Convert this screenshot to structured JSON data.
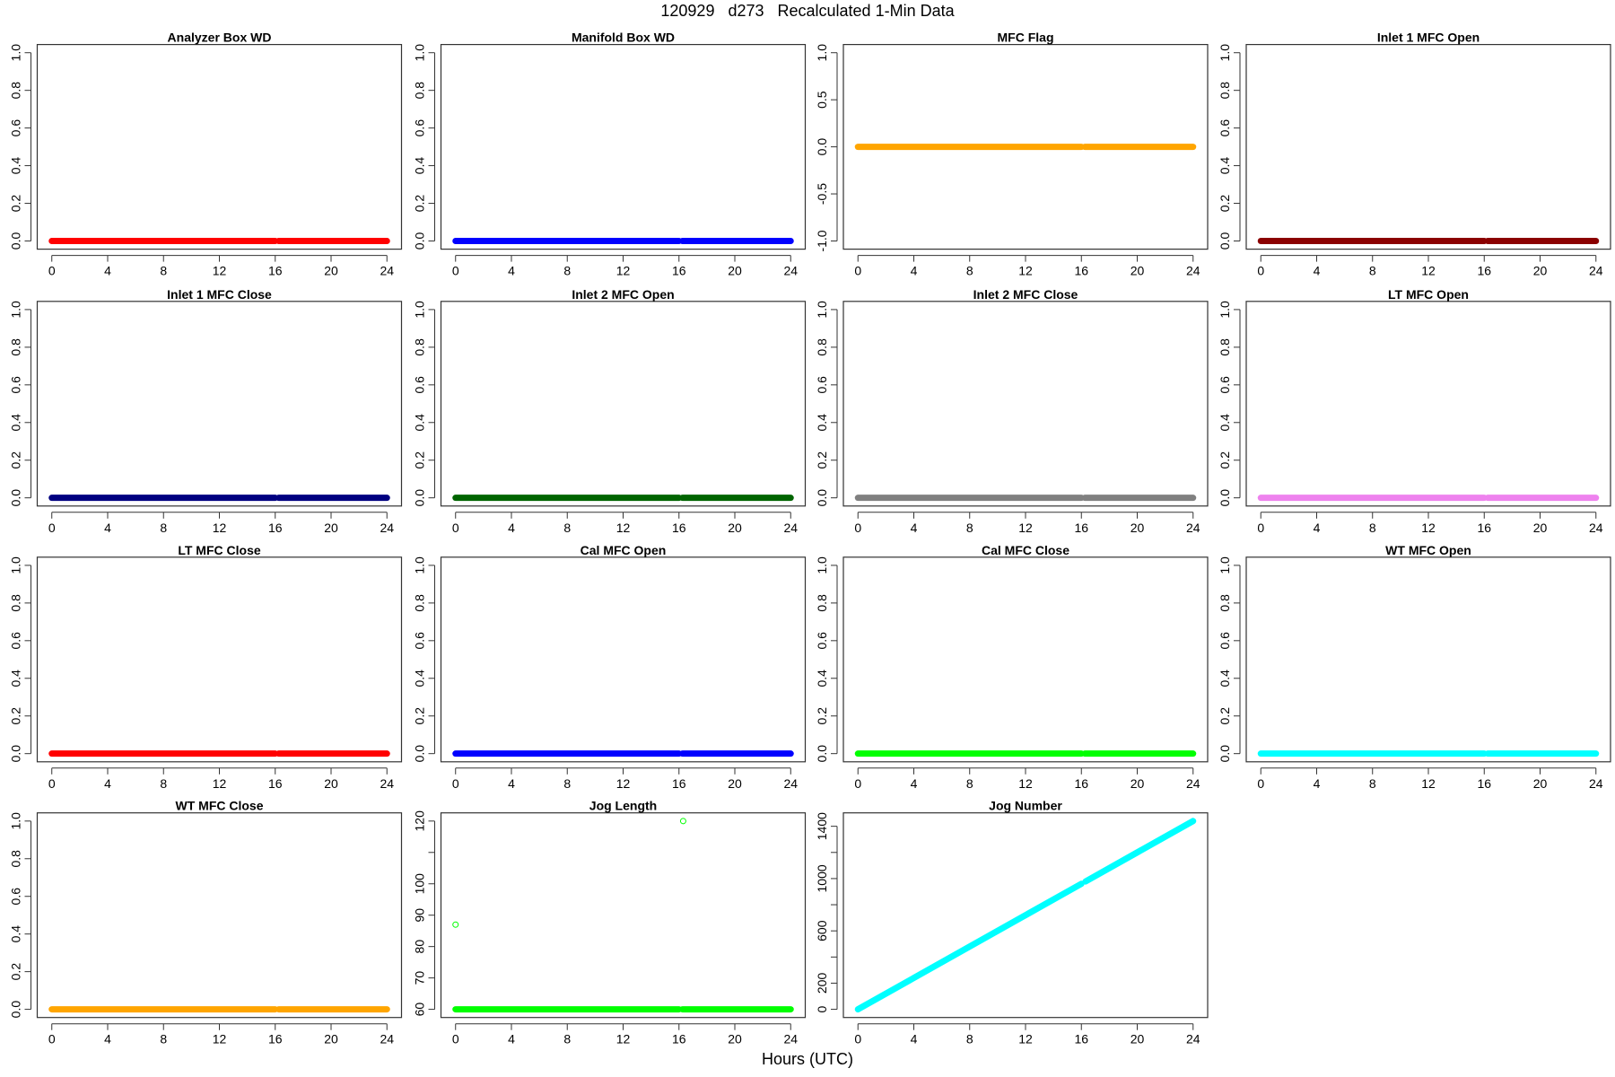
{
  "title": "120929   d273   Recalculated 1-Min Data",
  "xlabel": "Hours (UTC)",
  "chart_data": [
    {
      "type": "scatter",
      "title": "Analyzer Box WD",
      "color": "#FF0000",
      "xlim": [
        0,
        24
      ],
      "ylim": [
        0,
        1
      ],
      "xticks": [
        0,
        4,
        8,
        12,
        16,
        20,
        24
      ],
      "yticks": [
        {
          "v": 0,
          "l": "0.0"
        },
        {
          "v": 0.2,
          "l": "0.2"
        },
        {
          "v": 0.4,
          "l": "0.4"
        },
        {
          "v": 0.6,
          "l": "0.6"
        },
        {
          "v": 0.8,
          "l": "0.8"
        },
        {
          "v": 1,
          "l": "1.0"
        }
      ],
      "segments": [
        {
          "x": [
            0,
            16
          ],
          "y": [
            0,
            0
          ]
        },
        {
          "x": [
            16.25,
            24
          ],
          "y": [
            0,
            0
          ]
        }
      ],
      "points": []
    },
    {
      "type": "scatter",
      "title": "Manifold Box WD",
      "color": "#0000FF",
      "xlim": [
        0,
        24
      ],
      "ylim": [
        0,
        1
      ],
      "xticks": [
        0,
        4,
        8,
        12,
        16,
        20,
        24
      ],
      "yticks": [
        {
          "v": 0,
          "l": "0.0"
        },
        {
          "v": 0.2,
          "l": "0.2"
        },
        {
          "v": 0.4,
          "l": "0.4"
        },
        {
          "v": 0.6,
          "l": "0.6"
        },
        {
          "v": 0.8,
          "l": "0.8"
        },
        {
          "v": 1,
          "l": "1.0"
        }
      ],
      "segments": [
        {
          "x": [
            0,
            16
          ],
          "y": [
            0,
            0
          ]
        },
        {
          "x": [
            16.25,
            24
          ],
          "y": [
            0,
            0
          ]
        }
      ],
      "points": []
    },
    {
      "type": "scatter",
      "title": "MFC Flag",
      "color": "#FFA500",
      "xlim": [
        0,
        24
      ],
      "ylim": [
        -1,
        1
      ],
      "xticks": [
        0,
        4,
        8,
        12,
        16,
        20,
        24
      ],
      "yticks": [
        {
          "v": -1,
          "l": "-1.0"
        },
        {
          "v": -0.5,
          "l": "-0.5"
        },
        {
          "v": 0,
          "l": "0.0"
        },
        {
          "v": 0.5,
          "l": "0.5"
        },
        {
          "v": 1,
          "l": "1.0"
        }
      ],
      "segments": [
        {
          "x": [
            0,
            16
          ],
          "y": [
            0,
            0
          ]
        },
        {
          "x": [
            16.25,
            24
          ],
          "y": [
            0,
            0
          ]
        }
      ],
      "points": []
    },
    {
      "type": "scatter",
      "title": "Inlet 1 MFC Open",
      "color": "#8B0000",
      "xlim": [
        0,
        24
      ],
      "ylim": [
        0,
        1
      ],
      "xticks": [
        0,
        4,
        8,
        12,
        16,
        20,
        24
      ],
      "yticks": [
        {
          "v": 0,
          "l": "0.0"
        },
        {
          "v": 0.2,
          "l": "0.2"
        },
        {
          "v": 0.4,
          "l": "0.4"
        },
        {
          "v": 0.6,
          "l": "0.6"
        },
        {
          "v": 0.8,
          "l": "0.8"
        },
        {
          "v": 1,
          "l": "1.0"
        }
      ],
      "segments": [
        {
          "x": [
            0,
            16
          ],
          "y": [
            0,
            0
          ]
        },
        {
          "x": [
            16.25,
            24
          ],
          "y": [
            0,
            0
          ]
        }
      ],
      "points": []
    },
    {
      "type": "scatter",
      "title": "Inlet 1 MFC Close",
      "color": "#000080",
      "xlim": [
        0,
        24
      ],
      "ylim": [
        0,
        1
      ],
      "xticks": [
        0,
        4,
        8,
        12,
        16,
        20,
        24
      ],
      "yticks": [
        {
          "v": 0,
          "l": "0.0"
        },
        {
          "v": 0.2,
          "l": "0.2"
        },
        {
          "v": 0.4,
          "l": "0.4"
        },
        {
          "v": 0.6,
          "l": "0.6"
        },
        {
          "v": 0.8,
          "l": "0.8"
        },
        {
          "v": 1,
          "l": "1.0"
        }
      ],
      "segments": [
        {
          "x": [
            0,
            16
          ],
          "y": [
            0,
            0
          ]
        },
        {
          "x": [
            16.25,
            24
          ],
          "y": [
            0,
            0
          ]
        }
      ],
      "points": []
    },
    {
      "type": "scatter",
      "title": "Inlet 2 MFC Open",
      "color": "#006400",
      "xlim": [
        0,
        24
      ],
      "ylim": [
        0,
        1
      ],
      "xticks": [
        0,
        4,
        8,
        12,
        16,
        20,
        24
      ],
      "yticks": [
        {
          "v": 0,
          "l": "0.0"
        },
        {
          "v": 0.2,
          "l": "0.2"
        },
        {
          "v": 0.4,
          "l": "0.4"
        },
        {
          "v": 0.6,
          "l": "0.6"
        },
        {
          "v": 0.8,
          "l": "0.8"
        },
        {
          "v": 1,
          "l": "1.0"
        }
      ],
      "segments": [
        {
          "x": [
            0,
            16
          ],
          "y": [
            0,
            0
          ]
        },
        {
          "x": [
            16.25,
            24
          ],
          "y": [
            0,
            0
          ]
        }
      ],
      "points": []
    },
    {
      "type": "scatter",
      "title": "Inlet 2 MFC Close",
      "color": "#808080",
      "xlim": [
        0,
        24
      ],
      "ylim": [
        0,
        1
      ],
      "xticks": [
        0,
        4,
        8,
        12,
        16,
        20,
        24
      ],
      "yticks": [
        {
          "v": 0,
          "l": "0.0"
        },
        {
          "v": 0.2,
          "l": "0.2"
        },
        {
          "v": 0.4,
          "l": "0.4"
        },
        {
          "v": 0.6,
          "l": "0.6"
        },
        {
          "v": 0.8,
          "l": "0.8"
        },
        {
          "v": 1,
          "l": "1.0"
        }
      ],
      "segments": [
        {
          "x": [
            0,
            16
          ],
          "y": [
            0,
            0
          ]
        },
        {
          "x": [
            16.25,
            24
          ],
          "y": [
            0,
            0
          ]
        }
      ],
      "points": []
    },
    {
      "type": "scatter",
      "title": "LT MFC Open",
      "color": "#EE82EE",
      "xlim": [
        0,
        24
      ],
      "ylim": [
        0,
        1
      ],
      "xticks": [
        0,
        4,
        8,
        12,
        16,
        20,
        24
      ],
      "yticks": [
        {
          "v": 0,
          "l": "0.0"
        },
        {
          "v": 0.2,
          "l": "0.2"
        },
        {
          "v": 0.4,
          "l": "0.4"
        },
        {
          "v": 0.6,
          "l": "0.6"
        },
        {
          "v": 0.8,
          "l": "0.8"
        },
        {
          "v": 1,
          "l": "1.0"
        }
      ],
      "segments": [
        {
          "x": [
            0,
            16
          ],
          "y": [
            0,
            0
          ]
        },
        {
          "x": [
            16.25,
            24
          ],
          "y": [
            0,
            0
          ]
        }
      ],
      "points": []
    },
    {
      "type": "scatter",
      "title": "LT MFC Close",
      "color": "#FF0000",
      "xlim": [
        0,
        24
      ],
      "ylim": [
        0,
        1
      ],
      "xticks": [
        0,
        4,
        8,
        12,
        16,
        20,
        24
      ],
      "yticks": [
        {
          "v": 0,
          "l": "0.0"
        },
        {
          "v": 0.2,
          "l": "0.2"
        },
        {
          "v": 0.4,
          "l": "0.4"
        },
        {
          "v": 0.6,
          "l": "0.6"
        },
        {
          "v": 0.8,
          "l": "0.8"
        },
        {
          "v": 1,
          "l": "1.0"
        }
      ],
      "segments": [
        {
          "x": [
            0,
            16
          ],
          "y": [
            0,
            0
          ]
        },
        {
          "x": [
            16.25,
            24
          ],
          "y": [
            0,
            0
          ]
        }
      ],
      "points": []
    },
    {
      "type": "scatter",
      "title": "Cal MFC Open",
      "color": "#0000FF",
      "xlim": [
        0,
        24
      ],
      "ylim": [
        0,
        1
      ],
      "xticks": [
        0,
        4,
        8,
        12,
        16,
        20,
        24
      ],
      "yticks": [
        {
          "v": 0,
          "l": "0.0"
        },
        {
          "v": 0.2,
          "l": "0.2"
        },
        {
          "v": 0.4,
          "l": "0.4"
        },
        {
          "v": 0.6,
          "l": "0.6"
        },
        {
          "v": 0.8,
          "l": "0.8"
        },
        {
          "v": 1,
          "l": "1.0"
        }
      ],
      "segments": [
        {
          "x": [
            0,
            16
          ],
          "y": [
            0,
            0
          ]
        },
        {
          "x": [
            16.25,
            24
          ],
          "y": [
            0,
            0
          ]
        }
      ],
      "points": []
    },
    {
      "type": "scatter",
      "title": "Cal MFC Close",
      "color": "#00FF00",
      "xlim": [
        0,
        24
      ],
      "ylim": [
        0,
        1
      ],
      "xticks": [
        0,
        4,
        8,
        12,
        16,
        20,
        24
      ],
      "yticks": [
        {
          "v": 0,
          "l": "0.0"
        },
        {
          "v": 0.2,
          "l": "0.2"
        },
        {
          "v": 0.4,
          "l": "0.4"
        },
        {
          "v": 0.6,
          "l": "0.6"
        },
        {
          "v": 0.8,
          "l": "0.8"
        },
        {
          "v": 1,
          "l": "1.0"
        }
      ],
      "segments": [
        {
          "x": [
            0,
            16
          ],
          "y": [
            0,
            0
          ]
        },
        {
          "x": [
            16.25,
            24
          ],
          "y": [
            0,
            0
          ]
        }
      ],
      "points": []
    },
    {
      "type": "scatter",
      "title": "WT MFC Open",
      "color": "#00FFFF",
      "xlim": [
        0,
        24
      ],
      "ylim": [
        0,
        1
      ],
      "xticks": [
        0,
        4,
        8,
        12,
        16,
        20,
        24
      ],
      "yticks": [
        {
          "v": 0,
          "l": "0.0"
        },
        {
          "v": 0.2,
          "l": "0.2"
        },
        {
          "v": 0.4,
          "l": "0.4"
        },
        {
          "v": 0.6,
          "l": "0.6"
        },
        {
          "v": 0.8,
          "l": "0.8"
        },
        {
          "v": 1,
          "l": "1.0"
        }
      ],
      "segments": [
        {
          "x": [
            0,
            16
          ],
          "y": [
            0,
            0
          ]
        },
        {
          "x": [
            16.25,
            24
          ],
          "y": [
            0,
            0
          ]
        }
      ],
      "points": []
    },
    {
      "type": "scatter",
      "title": "WT MFC Close",
      "color": "#FFA500",
      "xlim": [
        0,
        24
      ],
      "ylim": [
        0,
        1
      ],
      "xticks": [
        0,
        4,
        8,
        12,
        16,
        20,
        24
      ],
      "yticks": [
        {
          "v": 0,
          "l": "0.0"
        },
        {
          "v": 0.2,
          "l": "0.2"
        },
        {
          "v": 0.4,
          "l": "0.4"
        },
        {
          "v": 0.6,
          "l": "0.6"
        },
        {
          "v": 0.8,
          "l": "0.8"
        },
        {
          "v": 1,
          "l": "1.0"
        }
      ],
      "segments": [
        {
          "x": [
            0,
            16
          ],
          "y": [
            0,
            0
          ]
        },
        {
          "x": [
            16.25,
            24
          ],
          "y": [
            0,
            0
          ]
        }
      ],
      "points": []
    },
    {
      "type": "scatter",
      "title": "Jog Length",
      "color": "#00FF00",
      "xlim": [
        0,
        24
      ],
      "ylim": [
        60,
        120
      ],
      "xticks": [
        0,
        4,
        8,
        12,
        16,
        20,
        24
      ],
      "yticks": [
        {
          "v": 60,
          "l": "60"
        },
        {
          "v": 70,
          "l": "70"
        },
        {
          "v": 80,
          "l": "80"
        },
        {
          "v": 90,
          "l": "90"
        },
        {
          "v": 100,
          "l": "100"
        },
        {
          "v": 110,
          "l": null
        },
        {
          "v": 120,
          "l": "120"
        }
      ],
      "segments": [
        {
          "x": [
            0,
            16
          ],
          "y": [
            60,
            60
          ]
        },
        {
          "x": [
            16.25,
            24
          ],
          "y": [
            60,
            60
          ]
        }
      ],
      "points": [
        {
          "x": 0,
          "y": 87
        },
        {
          "x": 16.3,
          "y": 120
        }
      ]
    },
    {
      "type": "scatter",
      "title": "Jog Number",
      "color": "#00FFFF",
      "xlim": [
        0,
        24
      ],
      "ylim": [
        0,
        1440
      ],
      "xticks": [
        0,
        4,
        8,
        12,
        16,
        20,
        24
      ],
      "yticks": [
        {
          "v": 0,
          "l": "0"
        },
        {
          "v": 200,
          "l": "200"
        },
        {
          "v": 400,
          "l": null
        },
        {
          "v": 600,
          "l": "600"
        },
        {
          "v": 800,
          "l": null
        },
        {
          "v": 1000,
          "l": "1000"
        },
        {
          "v": 1200,
          "l": null
        },
        {
          "v": 1400,
          "l": "1400"
        }
      ],
      "segments": [
        {
          "x": [
            0,
            16
          ],
          "y": [
            0,
            960
          ]
        },
        {
          "x": [
            16.3,
            24
          ],
          "y": [
            978,
            1440
          ]
        }
      ],
      "points": []
    }
  ]
}
